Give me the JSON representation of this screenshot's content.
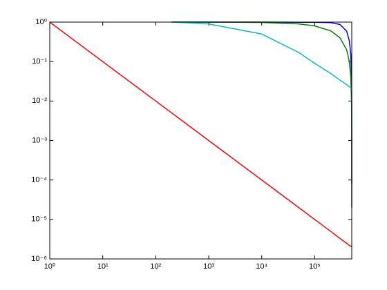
{
  "chart_data": {
    "type": "line",
    "xscale": "log",
    "yscale": "log",
    "x": [
      1,
      10,
      100,
      200,
      1000,
      10000,
      50000,
      100000,
      200000,
      300000,
      400000,
      450000,
      480000,
      495000,
      499000,
      499900,
      499990,
      500000
    ],
    "series": [
      {
        "color": "#0000ff",
        "values": [
          null,
          null,
          null,
          1,
          1,
          1,
          0.99,
          0.99,
          0.97,
          0.87,
          0.59,
          0.34,
          0.15,
          0.04,
          0.008,
          0.0008,
          8e-05,
          null
        ]
      },
      {
        "color": "#008000",
        "values": [
          null,
          null,
          null,
          1,
          1,
          0.98,
          0.9,
          0.8,
          0.6,
          0.4,
          0.2,
          0.1,
          0.04,
          0.01,
          0.002,
          0.0002,
          2e-05,
          null
        ]
      },
      {
        "color": "#00bfbf",
        "values": [
          null,
          null,
          null,
          1,
          0.9,
          0.5,
          0.17,
          0.09,
          0.05,
          0.034,
          0.026,
          0.023,
          0.022,
          0.021,
          0.02,
          0.02,
          0.02,
          0.02
        ]
      },
      {
        "color": "#ff0000",
        "values": [
          1,
          0.1,
          0.01,
          0.005,
          0.001,
          0.0001,
          2e-05,
          1e-05,
          5e-06,
          3.3e-06,
          2.5e-06,
          2.2e-06,
          2.1e-06,
          2.02e-06,
          2e-06,
          2e-06,
          2e-06,
          2e-06
        ]
      }
    ],
    "xlim": [
      1,
      500000
    ],
    "ylim": [
      1e-06,
      1
    ],
    "xticks": [
      {
        "value": 1,
        "label": "10⁰"
      },
      {
        "value": 10,
        "label": "10¹"
      },
      {
        "value": 100,
        "label": "10²"
      },
      {
        "value": 1000,
        "label": "10³"
      },
      {
        "value": 10000,
        "label": "10⁴"
      },
      {
        "value": 100000,
        "label": "10⁵"
      }
    ],
    "yticks": [
      {
        "value": 1e-06,
        "label": "10⁻⁶"
      },
      {
        "value": 1e-05,
        "label": "10⁻⁵"
      },
      {
        "value": 0.0001,
        "label": "10⁻⁴"
      },
      {
        "value": 0.001,
        "label": "10⁻³"
      },
      {
        "value": 0.01,
        "label": "10⁻²"
      },
      {
        "value": 0.1,
        "label": "10⁻¹"
      },
      {
        "value": 1,
        "label": "10⁰"
      }
    ],
    "grid": false
  }
}
